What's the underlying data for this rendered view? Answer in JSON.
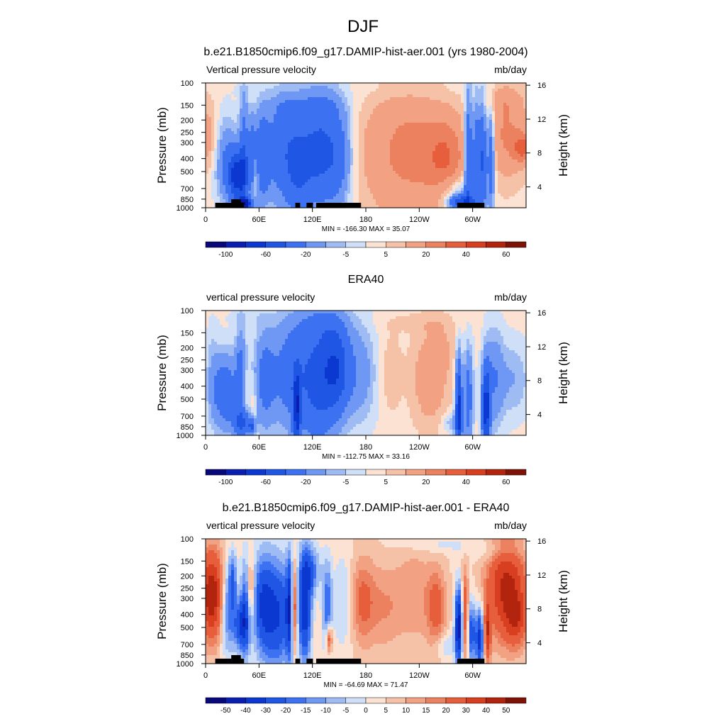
{
  "figure_title": "DJF",
  "colors": {
    "ramp": [
      "#08087a",
      "#0a1fb0",
      "#0b38d0",
      "#1f56e4",
      "#3c72f2",
      "#6e98f4",
      "#9fbbf4",
      "#cfdff8",
      "#fbe2d3",
      "#f5c2a8",
      "#f2a283",
      "#ec8160",
      "#e65e3b",
      "#d83e20",
      "#b3240f",
      "#7f1206"
    ]
  },
  "chart_data": [
    {
      "type": "heatmap",
      "title": "b.e21.B1850cmip6.f09_g17.DAMIP-hist-aer.001 (yrs 1980-2004)",
      "left_label": "Vertical pressure velocity",
      "right_label": "mb/day",
      "ylabel": "Pressure (mb)",
      "y2label": "Height (km)",
      "x_ticks": [
        "0",
        "60E",
        "120E",
        "180",
        "120W",
        "60W"
      ],
      "y_ticks": [
        "100",
        "150",
        "200",
        "250",
        "300",
        "400",
        "500",
        "700",
        "850",
        "1000"
      ],
      "y2_ticks": [
        "16",
        "12",
        "8",
        "4"
      ],
      "minmax_text": "MIN = -166.30  MAX =  35.07",
      "min": -166.3,
      "max": 35.07,
      "colorbar_labels": [
        "-100",
        "-60",
        "-20",
        "-5",
        "5",
        "20",
        "40",
        "60"
      ],
      "has_land_mask": true
    },
    {
      "type": "heatmap",
      "title": "ERA40",
      "left_label": "vertical pressure velocity",
      "right_label": "mb/day",
      "ylabel": "Pressure (mb)",
      "y2label": "Height (km)",
      "x_ticks": [
        "0",
        "60E",
        "120E",
        "180",
        "120W",
        "60W"
      ],
      "y_ticks": [
        "100",
        "150",
        "200",
        "250",
        "300",
        "400",
        "500",
        "700",
        "850",
        "1000"
      ],
      "y2_ticks": [
        "16",
        "12",
        "8",
        "4"
      ],
      "minmax_text": "MIN = -112.75  MAX =  33.16",
      "min": -112.75,
      "max": 33.16,
      "colorbar_labels": [
        "-100",
        "-60",
        "-20",
        "-5",
        "5",
        "20",
        "40",
        "60"
      ],
      "has_land_mask": false
    },
    {
      "type": "heatmap",
      "title": "b.e21.B1850cmip6.f09_g17.DAMIP-hist-aer.001 - ERA40",
      "left_label": "vertical pressure velocity",
      "right_label": "mb/day",
      "ylabel": "Pressure (mb)",
      "y2label": "Height (km)",
      "x_ticks": [
        "0",
        "60E",
        "120E",
        "180",
        "120W",
        "60W"
      ],
      "y_ticks": [
        "100",
        "150",
        "200",
        "250",
        "300",
        "400",
        "500",
        "700",
        "850",
        "1000"
      ],
      "y2_ticks": [
        "16",
        "12",
        "8",
        "4"
      ],
      "minmax_text": "MIN = -64.69  MAX =  71.47",
      "min": -64.69,
      "max": 71.47,
      "colorbar_labels": [
        "-50",
        "-40",
        "-30",
        "-20",
        "-15",
        "-10",
        "-5",
        "0",
        "5",
        "10",
        "15",
        "20",
        "30",
        "40",
        "50"
      ],
      "has_land_mask": true
    }
  ]
}
